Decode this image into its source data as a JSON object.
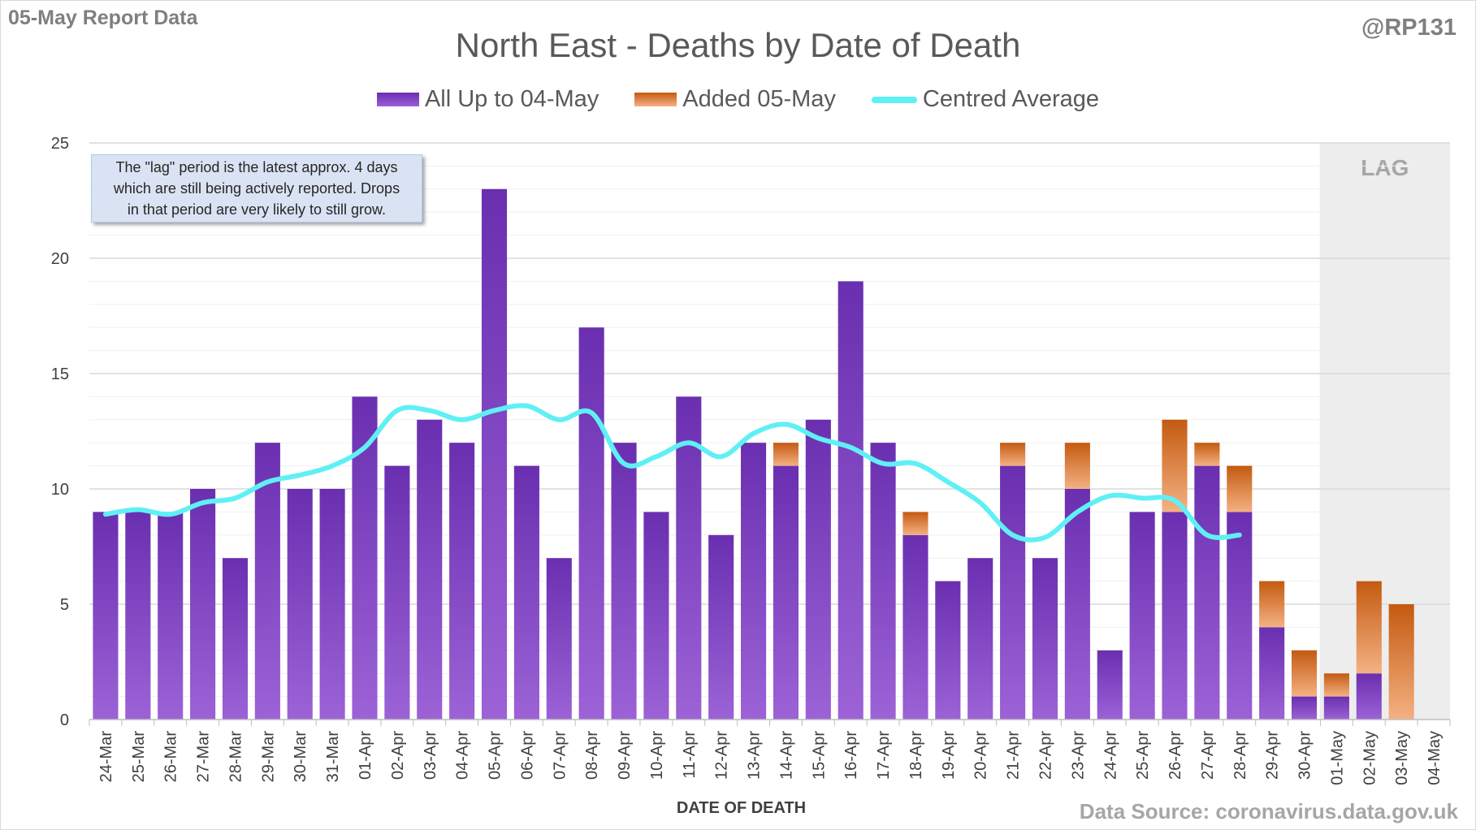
{
  "header": {
    "report_label": "05-May Report Data",
    "handle": "@RP131",
    "source": "Data Source: coronavirus.data.gov.uk"
  },
  "note": {
    "lines": [
      "The \"lag\" period is the latest approx. 4 days",
      "which are still being actively reported.  Drops",
      "in that period are very likely to still grow."
    ]
  },
  "colors": {
    "existing": "#7030a0",
    "added": "#c55a11",
    "average": "#5ff0f5",
    "lag_shade": "#ededed"
  },
  "chart_data": {
    "type": "bar",
    "title": "North East - Deaths by Date of Death",
    "xlabel": "DATE OF DEATH",
    "ylabel": "",
    "ylim": [
      0,
      25
    ],
    "yticks": [
      0,
      5,
      10,
      15,
      20,
      25
    ],
    "stacked": true,
    "legend_position": "top",
    "grid": true,
    "lag_label": "LAG",
    "lag_categories": [
      "01-May",
      "02-May",
      "03-May",
      "04-May"
    ],
    "categories": [
      "24-Mar",
      "25-Mar",
      "26-Mar",
      "27-Mar",
      "28-Mar",
      "29-Mar",
      "30-Mar",
      "31-Mar",
      "01-Apr",
      "02-Apr",
      "03-Apr",
      "04-Apr",
      "05-Apr",
      "06-Apr",
      "07-Apr",
      "08-Apr",
      "09-Apr",
      "10-Apr",
      "11-Apr",
      "12-Apr",
      "13-Apr",
      "14-Apr",
      "15-Apr",
      "16-Apr",
      "17-Apr",
      "18-Apr",
      "19-Apr",
      "20-Apr",
      "21-Apr",
      "22-Apr",
      "23-Apr",
      "24-Apr",
      "25-Apr",
      "26-Apr",
      "27-Apr",
      "28-Apr",
      "29-Apr",
      "30-Apr",
      "01-May",
      "02-May",
      "03-May",
      "04-May"
    ],
    "series": [
      {
        "name": "All Up to 04-May",
        "values": [
          9,
          9,
          9,
          10,
          7,
          12,
          10,
          10,
          14,
          11,
          13,
          12,
          23,
          11,
          7,
          17,
          12,
          9,
          14,
          8,
          12,
          11,
          13,
          19,
          12,
          8,
          6,
          7,
          11,
          7,
          10,
          3,
          9,
          9,
          11,
          9,
          4,
          1,
          1,
          2,
          0,
          0
        ]
      },
      {
        "name": "Added 05-May",
        "values": [
          0,
          0,
          0,
          0,
          0,
          0,
          0,
          0,
          0,
          0,
          0,
          0,
          0,
          0,
          0,
          0,
          0,
          0,
          0,
          0,
          0,
          1,
          0,
          0,
          0,
          1,
          0,
          0,
          1,
          0,
          2,
          0,
          0,
          4,
          1,
          2,
          2,
          2,
          1,
          4,
          5,
          0
        ]
      },
      {
        "name": "Centred Average",
        "type": "line",
        "values": [
          8.9,
          9.1,
          8.9,
          9.4,
          9.6,
          10.3,
          10.6,
          11.0,
          11.8,
          13.4,
          13.4,
          13.0,
          13.4,
          13.6,
          13.0,
          13.3,
          11.1,
          11.4,
          12.0,
          11.4,
          12.4,
          12.8,
          12.2,
          11.8,
          11.1,
          11.1,
          10.3,
          9.4,
          8.0,
          7.9,
          9.0,
          9.7,
          9.6,
          9.5,
          8.0,
          8.0,
          null,
          null,
          null,
          null,
          null,
          null
        ]
      }
    ]
  }
}
